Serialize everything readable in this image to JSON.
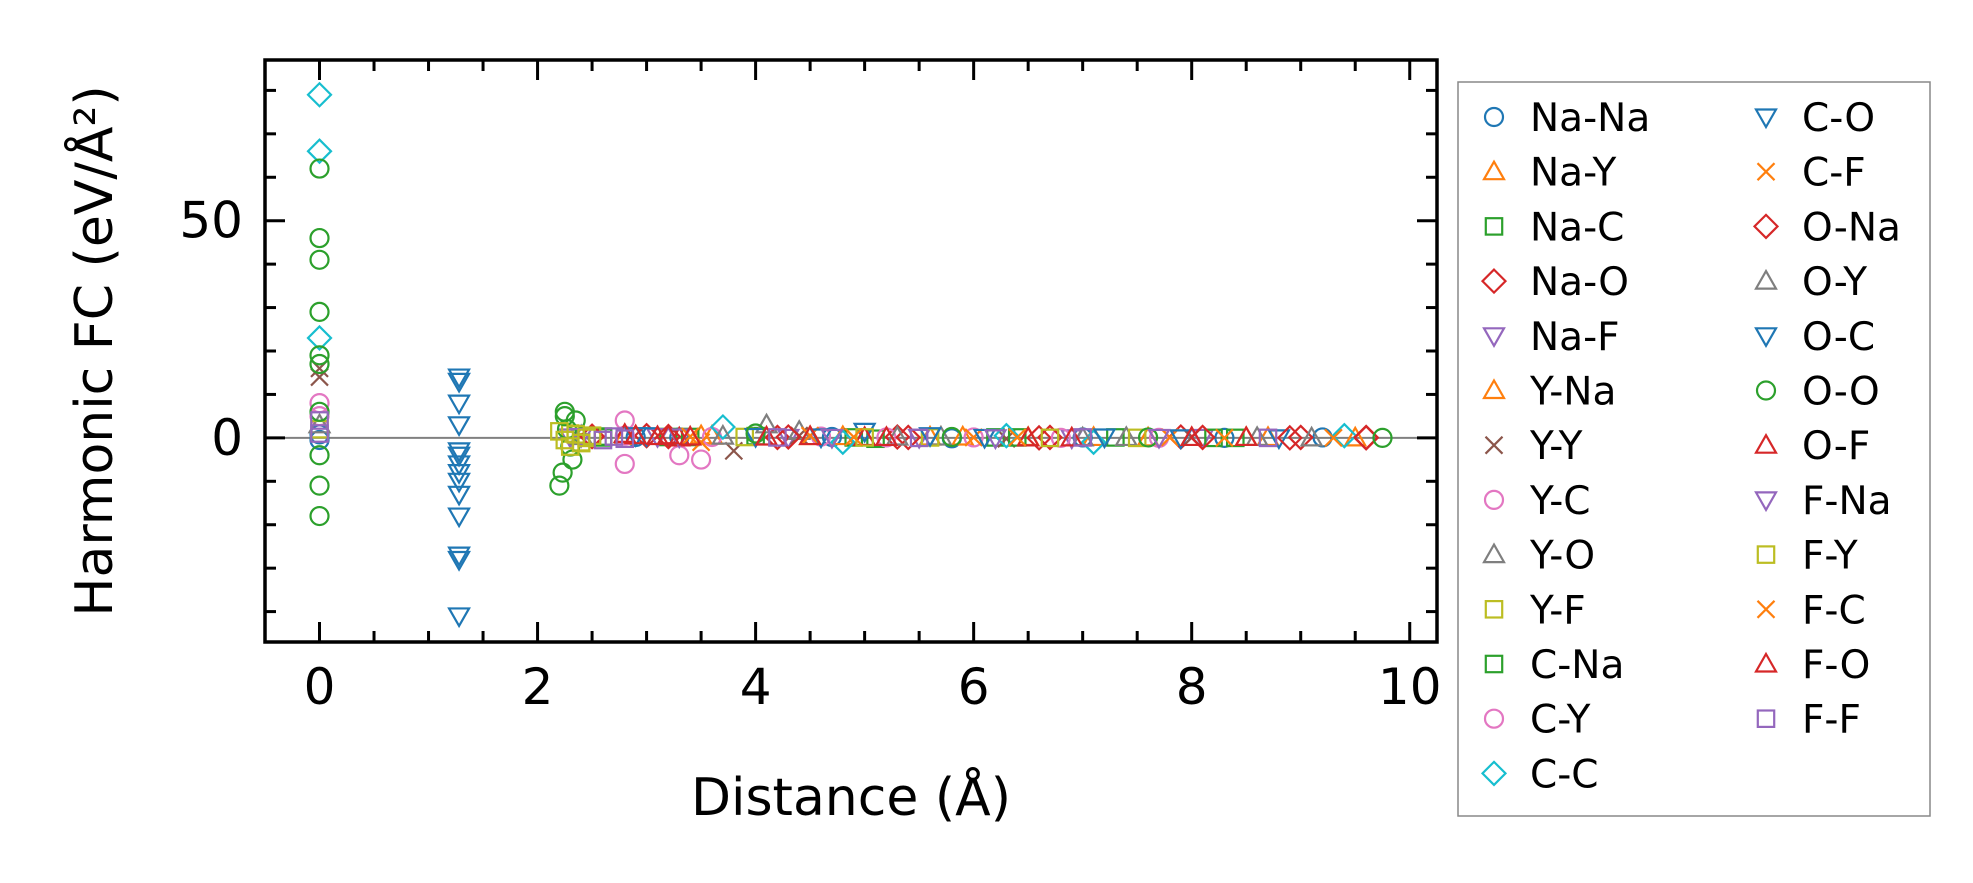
{
  "chart_data": {
    "type": "scatter",
    "xlabel": "Distance (Å)",
    "ylabel": "Harmonic FC (eV/Å²)",
    "xlim": [
      -0.5,
      10.25
    ],
    "ylim": [
      -47,
      87
    ],
    "x_ticks": [
      "0",
      "2",
      "4",
      "6",
      "8",
      "10"
    ],
    "y_ticks": [
      "0",
      "50"
    ],
    "zero_line": true,
    "grid": false,
    "legend_position": "outside-right",
    "legend_columns": 2,
    "series": [
      {
        "name": "Na-Na",
        "marker": "circle",
        "color": "#1f77b4",
        "points": [
          [
            0,
            0.8
          ],
          [
            0,
            -0.5
          ],
          [
            2.9,
            0.2
          ],
          [
            3.3,
            0.1
          ],
          [
            4.7,
            0.2
          ],
          [
            5.8,
            -0.1
          ],
          [
            7.0,
            0.1
          ],
          [
            8.3,
            0.0
          ],
          [
            9.2,
            0.1
          ]
        ]
      },
      {
        "name": "Na-Y",
        "marker": "triangle-up",
        "color": "#ff7f0e",
        "points": [
          [
            2.8,
            0.3
          ],
          [
            3.5,
            0.5
          ],
          [
            4.5,
            0.3
          ],
          [
            5.6,
            0.2
          ],
          [
            6.5,
            0.1
          ],
          [
            7.6,
            0.0
          ],
          [
            8.7,
            0.1
          ],
          [
            9.5,
            0.0
          ]
        ]
      },
      {
        "name": "Na-C",
        "marker": "square",
        "color": "#2ca02c",
        "points": [
          [
            2.6,
            0.1
          ],
          [
            3.2,
            0.2
          ],
          [
            4.0,
            0.4
          ],
          [
            5.1,
            -0.2
          ],
          [
            6.2,
            0.1
          ],
          [
            7.3,
            0.1
          ],
          [
            8.4,
            0.0
          ]
        ]
      },
      {
        "name": "Na-O",
        "marker": "diamond",
        "color": "#d62728",
        "points": [
          [
            2.5,
            0.3
          ],
          [
            3.0,
            0.5
          ],
          [
            4.2,
            0.1
          ],
          [
            5.3,
            0.2
          ],
          [
            6.6,
            0.0
          ],
          [
            7.9,
            0.2
          ],
          [
            9.0,
            0.1
          ],
          [
            9.6,
            0.0
          ]
        ]
      },
      {
        "name": "Na-F",
        "marker": "triangle-down",
        "color": "#9467bd",
        "points": [
          [
            2.3,
            0.2
          ],
          [
            3.1,
            0.3
          ],
          [
            4.3,
            0.1
          ],
          [
            5.5,
            0.1
          ],
          [
            6.9,
            0.0
          ],
          [
            8.1,
            0.1
          ]
        ]
      },
      {
        "name": "Y-Na",
        "marker": "triangle-up",
        "color": "#ff7f0e",
        "points": [
          [
            3.6,
            0.4
          ],
          [
            4.8,
            0.3
          ],
          [
            5.9,
            0.2
          ],
          [
            7.1,
            0.1
          ],
          [
            8.5,
            0.1
          ]
        ]
      },
      {
        "name": "Y-Y",
        "marker": "x",
        "color": "#8c564b",
        "points": [
          [
            0,
            16
          ],
          [
            0,
            14
          ],
          [
            3.8,
            -3.0
          ],
          [
            4.4,
            0.5
          ],
          [
            6.3,
            -0.2
          ],
          [
            8.0,
            0.1
          ]
        ]
      },
      {
        "name": "Y-C",
        "marker": "circle",
        "color": "#e377c2",
        "points": [
          [
            0,
            8
          ],
          [
            0,
            5
          ],
          [
            2.8,
            4
          ],
          [
            2.8,
            -6
          ],
          [
            3.3,
            -4
          ],
          [
            3.5,
            -5
          ],
          [
            4.6,
            0.3
          ],
          [
            6.0,
            0.1
          ],
          [
            7.7,
            0.0
          ]
        ]
      },
      {
        "name": "Y-O",
        "marker": "triangle-up",
        "color": "#7f7f7f",
        "points": [
          [
            0,
            3
          ],
          [
            2.4,
            0.5
          ],
          [
            4.1,
            3.0
          ],
          [
            4.4,
            1.5
          ],
          [
            5.7,
            0.2
          ],
          [
            7.4,
            0.1
          ],
          [
            9.1,
            0.0
          ]
        ]
      },
      {
        "name": "Y-F",
        "marker": "square",
        "color": "#bcbd22",
        "points": [
          [
            0,
            2
          ],
          [
            2.3,
            1.0
          ],
          [
            2.4,
            -1.0
          ],
          [
            3.9,
            0.2
          ],
          [
            5.6,
            0.1
          ],
          [
            7.5,
            0.0
          ]
        ]
      },
      {
        "name": "C-Na",
        "marker": "square",
        "color": "#2ca02c",
        "points": [
          [
            2.6,
            0.3
          ],
          [
            3.4,
            0.2
          ],
          [
            4.9,
            0.1
          ],
          [
            6.4,
            0.1
          ],
          [
            8.2,
            0.0
          ]
        ]
      },
      {
        "name": "C-Y",
        "marker": "circle",
        "color": "#e377c2",
        "points": [
          [
            2.8,
            0.5
          ],
          [
            3.6,
            0.2
          ],
          [
            5.2,
            0.1
          ],
          [
            6.8,
            0.0
          ]
        ]
      },
      {
        "name": "C-C",
        "marker": "diamond",
        "color": "#17becf",
        "points": [
          [
            0,
            79
          ],
          [
            0,
            66
          ],
          [
            0,
            23
          ],
          [
            3.7,
            2.5
          ],
          [
            4.8,
            -1.0
          ],
          [
            6.3,
            0.5
          ],
          [
            7.1,
            -1.0
          ],
          [
            9.4,
            0.5
          ]
        ]
      },
      {
        "name": "C-O",
        "marker": "triangle-down",
        "color": "#1f77b4",
        "points": [
          [
            1.28,
            13
          ],
          [
            1.28,
            8
          ],
          [
            1.28,
            3
          ],
          [
            1.28,
            -3
          ],
          [
            1.28,
            -6
          ],
          [
            1.28,
            -8
          ],
          [
            1.28,
            -10
          ],
          [
            1.28,
            -13
          ],
          [
            1.28,
            -18
          ],
          [
            1.28,
            -27
          ],
          [
            1.28,
            -28
          ],
          [
            1.28,
            -41
          ],
          [
            2.9,
            0.5
          ],
          [
            4.0,
            0.3
          ],
          [
            5.0,
            1.5
          ],
          [
            5.6,
            0.5
          ],
          [
            7.2,
            0.2
          ],
          [
            8.8,
            0.0
          ]
        ]
      },
      {
        "name": "C-F",
        "marker": "x",
        "color": "#ff7f0e",
        "points": [
          [
            3.5,
            -1.0
          ],
          [
            4.5,
            0.5
          ],
          [
            6.0,
            0.1
          ],
          [
            7.8,
            0.1
          ],
          [
            9.3,
            0.0
          ]
        ]
      },
      {
        "name": "O-Na",
        "marker": "diamond",
        "color": "#d62728",
        "points": [
          [
            2.5,
            0.4
          ],
          [
            3.2,
            0.3
          ],
          [
            4.3,
            0.2
          ],
          [
            5.4,
            0.1
          ],
          [
            6.7,
            0.1
          ],
          [
            8.1,
            0.1
          ],
          [
            8.9,
            0.0
          ],
          [
            9.6,
            0.1
          ]
        ]
      },
      {
        "name": "O-Y",
        "marker": "triangle-up",
        "color": "#7f7f7f",
        "points": [
          [
            2.4,
            0.3
          ],
          [
            3.7,
            0.4
          ],
          [
            5.3,
            0.2
          ],
          [
            7.0,
            0.0
          ],
          [
            8.6,
            0.1
          ]
        ]
      },
      {
        "name": "O-C",
        "marker": "triangle-down",
        "color": "#1f77b4",
        "points": [
          [
            1.28,
            14
          ],
          [
            1.28,
            -4
          ],
          [
            3.0,
            0.5
          ],
          [
            4.6,
            0.2
          ],
          [
            6.1,
            0.1
          ],
          [
            7.9,
            0.0
          ]
        ]
      },
      {
        "name": "O-O",
        "marker": "circle",
        "color": "#2ca02c",
        "points": [
          [
            0,
            62
          ],
          [
            0,
            46
          ],
          [
            0,
            41
          ],
          [
            0,
            29
          ],
          [
            0,
            19
          ],
          [
            0,
            17
          ],
          [
            0,
            6
          ],
          [
            0,
            -4
          ],
          [
            0,
            -11
          ],
          [
            0,
            -18
          ],
          [
            2.2,
            -11
          ],
          [
            2.23,
            -8
          ],
          [
            2.25,
            6
          ],
          [
            2.25,
            5
          ],
          [
            2.27,
            2
          ],
          [
            2.3,
            -2
          ],
          [
            2.32,
            -5
          ],
          [
            2.35,
            4
          ],
          [
            4.0,
            1.0
          ],
          [
            5.8,
            0.2
          ],
          [
            7.6,
            0.1
          ],
          [
            9.75,
            0.0
          ]
        ]
      },
      {
        "name": "O-F",
        "marker": "triangle-up",
        "color": "#d62728",
        "points": [
          [
            2.9,
            0.5
          ],
          [
            3.1,
            0.3
          ],
          [
            3.3,
            0.0
          ],
          [
            4.1,
            0.2
          ],
          [
            5.0,
            0.1
          ],
          [
            6.5,
            0.0
          ],
          [
            8.0,
            0.1
          ]
        ]
      },
      {
        "name": "F-Na",
        "marker": "triangle-down",
        "color": "#9467bd",
        "points": [
          [
            2.4,
            0.3
          ],
          [
            3.3,
            0.2
          ],
          [
            4.7,
            0.1
          ],
          [
            6.2,
            0.0
          ],
          [
            7.7,
            0.1
          ]
        ]
      },
      {
        "name": "F-Y",
        "marker": "square",
        "color": "#bcbd22",
        "points": [
          [
            2.2,
            1.5
          ],
          [
            2.25,
            -0.5
          ],
          [
            2.3,
            -2.0
          ],
          [
            2.35,
            0.8
          ],
          [
            2.4,
            -1.2
          ],
          [
            2.45,
            0.0
          ],
          [
            2.5,
            0.5
          ],
          [
            5.0,
            0.1
          ],
          [
            6.7,
            0.0
          ]
        ]
      },
      {
        "name": "F-C",
        "marker": "x",
        "color": "#ff7f0e",
        "points": [
          [
            3.4,
            0.3
          ],
          [
            4.9,
            0.2
          ],
          [
            6.4,
            0.1
          ],
          [
            8.3,
            0.0
          ]
        ]
      },
      {
        "name": "F-O",
        "marker": "triangle-up",
        "color": "#d62728",
        "points": [
          [
            2.8,
            0.8
          ],
          [
            3.2,
            0.5
          ],
          [
            3.4,
            0.2
          ],
          [
            4.5,
            0.3
          ],
          [
            5.2,
            0.1
          ],
          [
            6.9,
            0.0
          ],
          [
            8.5,
            0.1
          ]
        ]
      },
      {
        "name": "F-F",
        "marker": "square",
        "color": "#9467bd",
        "points": [
          [
            0,
            4
          ],
          [
            0,
            1
          ],
          [
            2.6,
            -0.5
          ],
          [
            2.7,
            0.3
          ],
          [
            2.8,
            -0.2
          ],
          [
            4.2,
            0.1
          ],
          [
            5.5,
            0.0
          ],
          [
            7.0,
            0.1
          ],
          [
            8.7,
            0.0
          ]
        ]
      }
    ]
  }
}
